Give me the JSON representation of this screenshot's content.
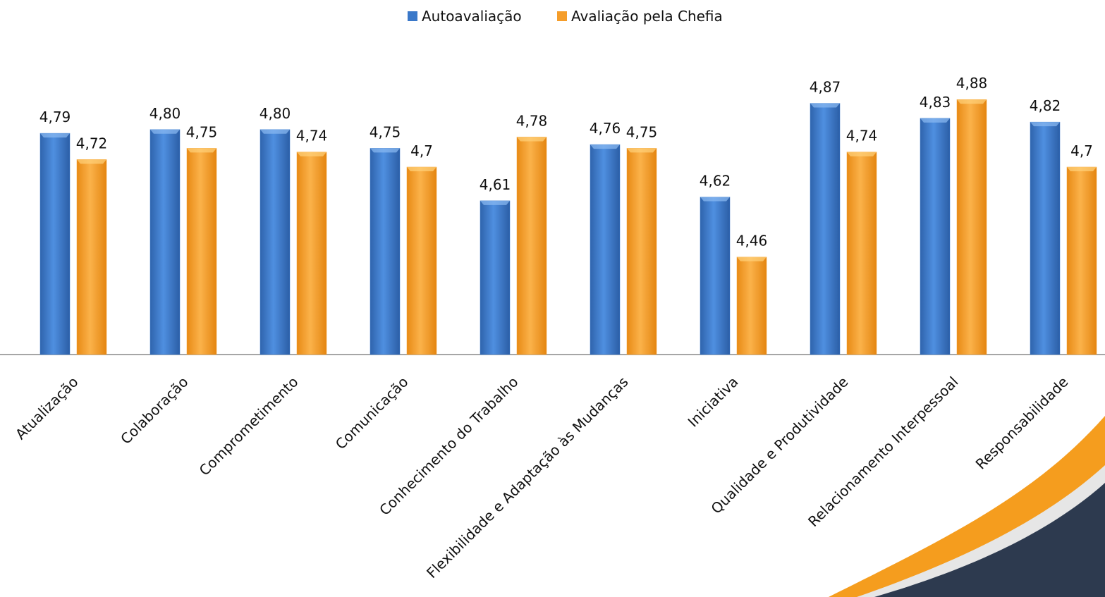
{
  "chart_data": {
    "type": "bar",
    "categories": [
      "Atualização",
      "Colaboração",
      "Comprometimento",
      "Comunicação",
      "Conhecimento do Trabalho",
      "Flexibilidade e Adaptação às Mudanças",
      "Iniciativa",
      "Qualidade e Produtividade",
      "Relacionamento Interpessoal",
      "Responsabilidade"
    ],
    "series": [
      {
        "name": "Autoavaliação",
        "color": "#3a78c9",
        "values": [
          4.79,
          4.8,
          4.8,
          4.75,
          4.61,
          4.76,
          4.62,
          4.87,
          4.83,
          4.82
        ],
        "value_labels": [
          "4,79",
          "4,80",
          "4,80",
          "4,75",
          "4,61",
          "4,76",
          "4,62",
          "4,87",
          "4,83",
          "4,82"
        ]
      },
      {
        "name": "Avaliação pela Chefia",
        "color": "#f59d2a",
        "values": [
          4.72,
          4.75,
          4.74,
          4.7,
          4.78,
          4.75,
          4.46,
          4.74,
          4.88,
          4.7
        ],
        "value_labels": [
          "4,72",
          "4,75",
          "4,74",
          "4,7",
          "4,78",
          "4,75",
          "4,46",
          "4,74",
          "4,88",
          "4,7"
        ]
      }
    ],
    "ylim": [
      4.2,
      4.95
    ],
    "legend": "top"
  }
}
